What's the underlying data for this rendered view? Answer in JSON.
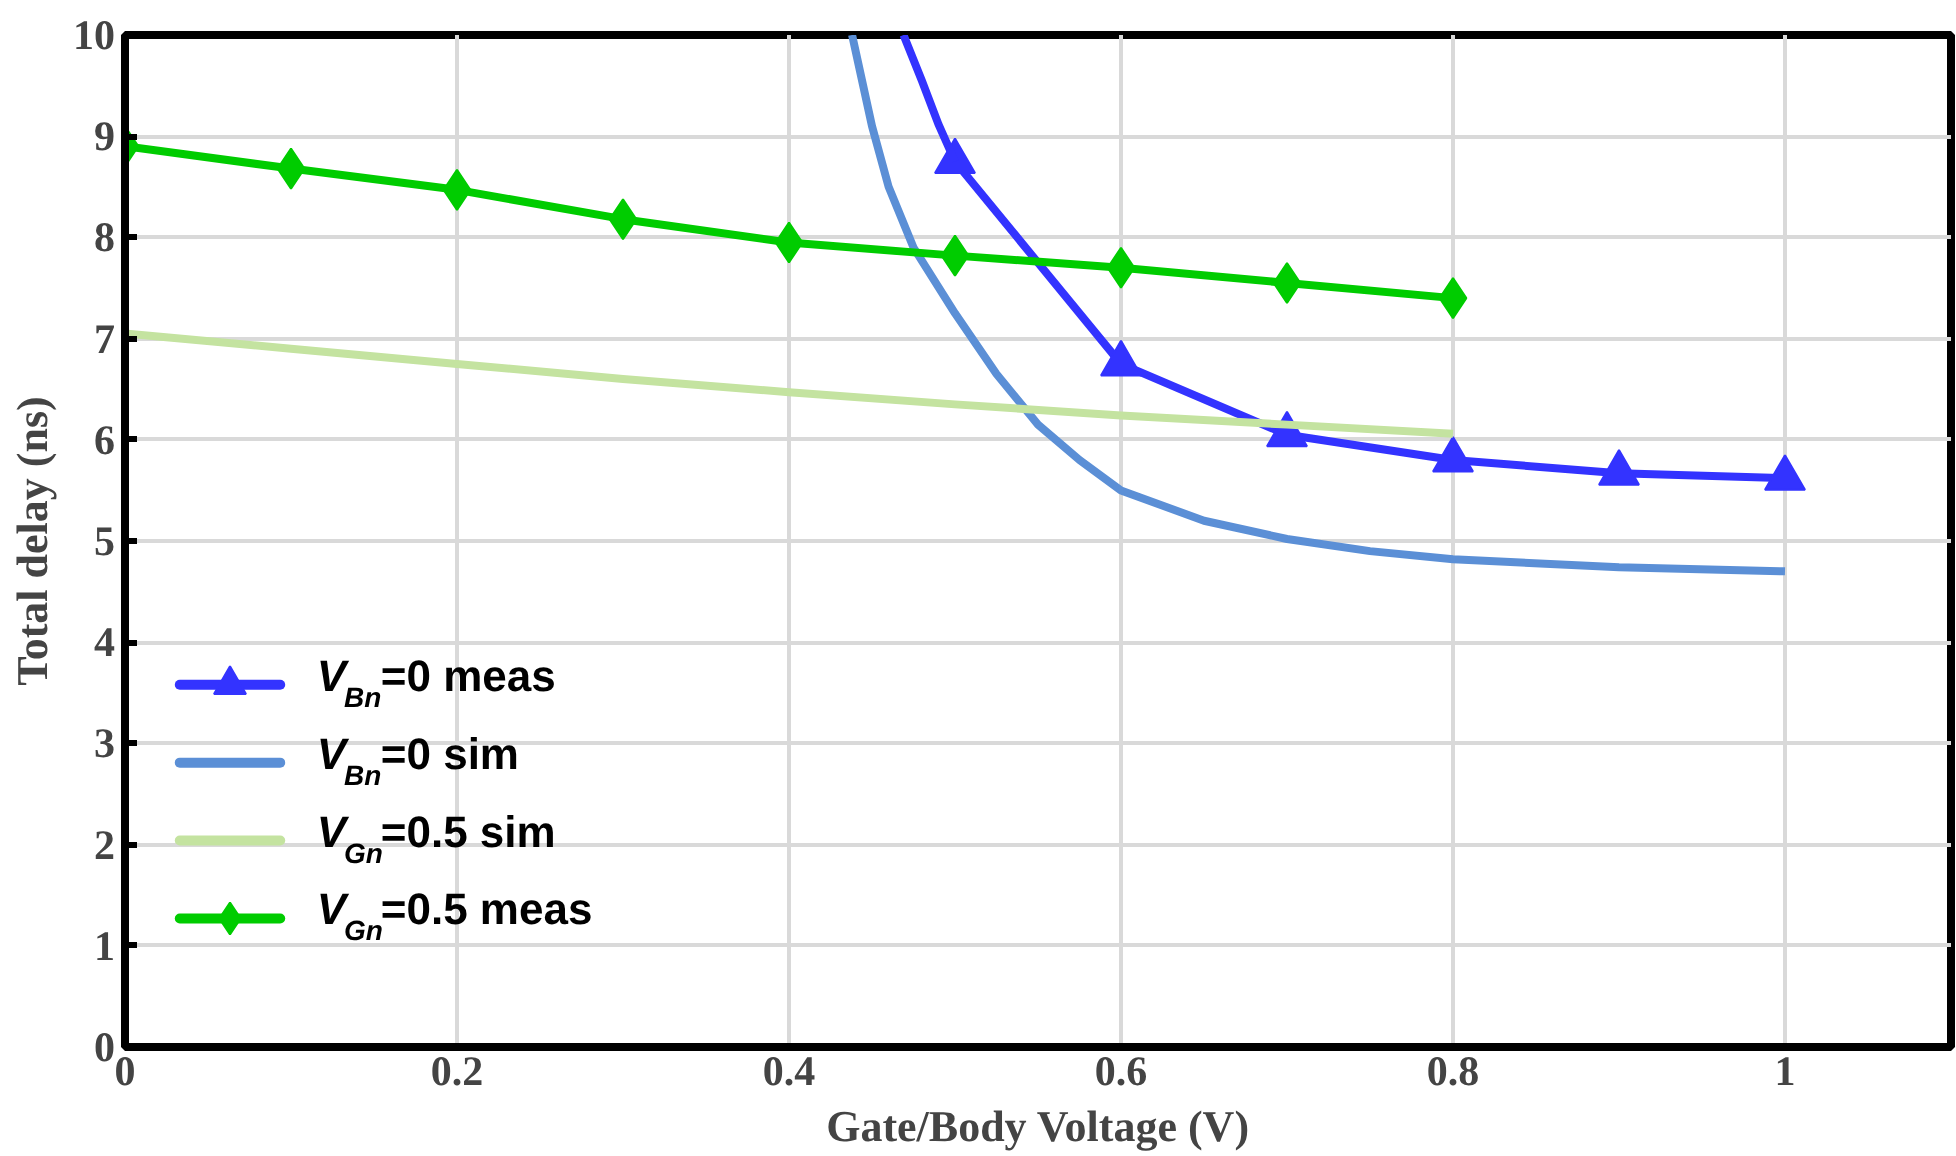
{
  "chart_data": {
    "type": "line",
    "xlabel": "Gate/Body Voltage (V)",
    "ylabel": "Total delay (ns)",
    "xlim": [
      0,
      1.1
    ],
    "ylim": [
      0,
      10
    ],
    "xticks": [
      0,
      0.2,
      0.4,
      0.6,
      0.8,
      1
    ],
    "yticks": [
      0,
      1,
      2,
      3,
      4,
      5,
      6,
      7,
      8,
      9,
      10
    ],
    "grid": true,
    "legend": "bottom left",
    "line_style": "solid",
    "series": [
      {
        "name": "V$_{Bn}$=0 meas",
        "color": "#3333ff",
        "marker": "triangle",
        "x": [
          0.5,
          0.6,
          0.7,
          0.8,
          0.9,
          1.0
        ],
        "values": [
          8.75,
          6.75,
          6.05,
          5.8,
          5.67,
          5.62
        ]
      },
      {
        "color": "#3333ff",
        "marker": "none",
        "x": [
          0.469,
          0.48,
          0.49,
          0.5
        ],
        "values": [
          10,
          9.55,
          9.12,
          8.75
        ]
      },
      {
        "name": "V$_{Bn}$=0 sim",
        "color": "#5b8fd6",
        "marker": "none",
        "x": [
          0.438,
          0.45,
          0.46,
          0.475,
          0.5,
          0.525,
          0.55,
          0.575,
          0.6,
          0.65,
          0.7,
          0.75,
          0.8,
          0.9,
          1.0
        ],
        "values": [
          10,
          9.1,
          8.5,
          7.9,
          7.25,
          6.65,
          6.15,
          5.8,
          5.5,
          5.2,
          5.02,
          4.9,
          4.82,
          4.74,
          4.7
        ]
      },
      {
        "name": "V$_{Gn}$=0.5 sim",
        "color": "#c4e3a0",
        "marker": "none",
        "x": [
          0,
          0.1,
          0.2,
          0.3,
          0.4,
          0.5,
          0.6,
          0.7,
          0.8
        ],
        "values": [
          7.05,
          6.9,
          6.75,
          6.6,
          6.47,
          6.35,
          6.24,
          6.15,
          6.06
        ]
      },
      {
        "name": "V$_{Gn}$=0.5 meas",
        "color": "#00cc00",
        "marker": "diamond",
        "x": [
          0,
          0.1,
          0.2,
          0.3,
          0.4,
          0.5,
          0.6,
          0.7,
          0.8
        ],
        "values": [
          8.9,
          8.68,
          8.47,
          8.18,
          7.95,
          7.82,
          7.7,
          7.55,
          7.4
        ]
      }
    ]
  }
}
